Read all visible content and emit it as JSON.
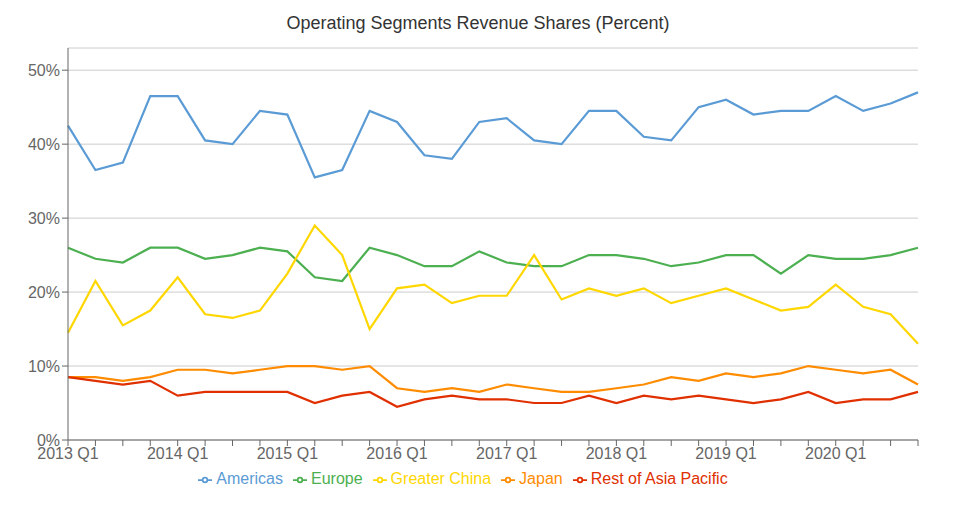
{
  "chart_data": {
    "type": "line",
    "title": "Operating Segments Revenue Shares (Percent)",
    "categories": [
      "2013 Q1",
      null,
      null,
      null,
      "2014 Q1",
      null,
      null,
      null,
      "2015 Q1",
      null,
      null,
      null,
      "2016 Q1",
      null,
      null,
      null,
      "2017 Q1",
      null,
      null,
      null,
      "2018 Q1",
      null,
      null,
      null,
      "2019 Q1",
      null,
      null,
      null,
      "2020 Q1",
      null,
      null,
      null
    ],
    "series": [
      {
        "name": "Americas",
        "color": "#5B9BD5",
        "values": [
          42.5,
          36.5,
          37.5,
          46.5,
          46.5,
          40.5,
          40.0,
          44.5,
          44.0,
          35.5,
          36.5,
          44.5,
          43.0,
          38.5,
          38.0,
          43.0,
          43.5,
          40.5,
          40.0,
          44.5,
          44.5,
          41.0,
          40.5,
          45.0,
          46.0,
          44.0,
          44.5,
          44.5,
          46.5,
          44.5,
          45.5,
          47.0
        ]
      },
      {
        "name": "Europe",
        "color": "#4CAF50",
        "values": [
          26.0,
          24.5,
          24.0,
          26.0,
          26.0,
          24.5,
          25.0,
          26.0,
          25.5,
          22.0,
          21.5,
          26.0,
          25.0,
          23.5,
          23.5,
          25.5,
          24.0,
          23.5,
          23.5,
          25.0,
          25.0,
          24.5,
          23.5,
          24.0,
          25.0,
          25.0,
          22.5,
          25.0,
          24.5,
          24.5,
          25.0,
          26.0
        ]
      },
      {
        "name": "Greater China",
        "color": "#FFD700",
        "values": [
          14.5,
          21.5,
          15.5,
          17.5,
          22.0,
          17.0,
          16.5,
          17.5,
          22.5,
          29.0,
          25.0,
          15.0,
          20.5,
          21.0,
          18.5,
          19.5,
          19.5,
          25.0,
          19.0,
          20.5,
          19.5,
          20.5,
          18.5,
          19.5,
          20.5,
          19.0,
          17.5,
          18.0,
          21.0,
          18.0,
          17.0,
          13.0
        ]
      },
      {
        "name": "Japan",
        "color": "#FF8C00",
        "values": [
          8.5,
          8.5,
          8.0,
          8.5,
          9.5,
          9.5,
          9.0,
          9.5,
          10.0,
          10.0,
          9.5,
          10.0,
          7.0,
          6.5,
          7.0,
          6.5,
          7.5,
          7.0,
          6.5,
          6.5,
          7.0,
          7.5,
          8.5,
          8.0,
          9.0,
          8.5,
          9.0,
          10.0,
          9.5,
          9.0,
          9.5,
          7.5
        ]
      },
      {
        "name": "Rest of Asia Pacific",
        "color": "#E03000",
        "values": [
          8.5,
          8.0,
          7.5,
          8.0,
          6.0,
          6.5,
          6.5,
          6.5,
          6.5,
          5.0,
          6.0,
          6.5,
          4.5,
          5.5,
          6.0,
          5.5,
          5.5,
          5.0,
          5.0,
          6.0,
          5.0,
          6.0,
          5.5,
          6.0,
          5.5,
          5.0,
          5.5,
          6.5,
          5.0,
          5.5,
          5.5,
          6.5
        ]
      }
    ],
    "ylim": [
      0,
      53
    ],
    "yticks": [
      {
        "value": 0,
        "label": "0%"
      },
      {
        "value": 10,
        "label": "10%"
      },
      {
        "value": 20,
        "label": "20%"
      },
      {
        "value": 30,
        "label": "30%"
      },
      {
        "value": 40,
        "label": "40%"
      },
      {
        "value": 50,
        "label": "50%"
      }
    ],
    "grid": true,
    "legend": "bottom"
  }
}
